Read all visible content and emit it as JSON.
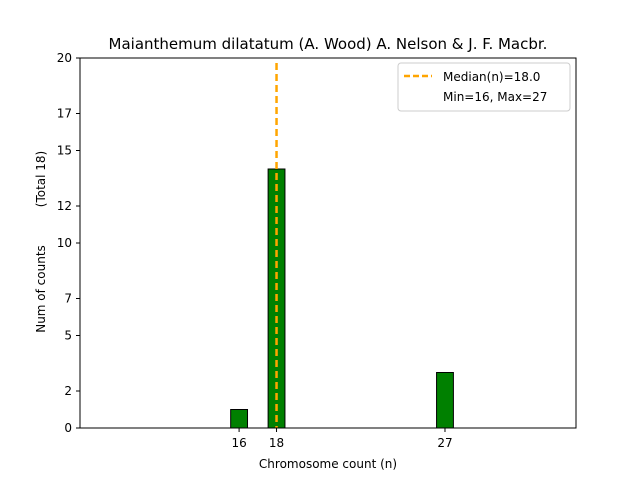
{
  "chart_data": {
    "type": "bar",
    "title": "Maianthemum dilatatum (A. Wood) A. Nelson & J. F. Macbr.",
    "xlabel": "Chromosome count (n)",
    "ylabel": "Num of counts",
    "ylabel_note": "(Total 18)",
    "x": [
      16,
      18,
      27
    ],
    "values": [
      1,
      14,
      3
    ],
    "xlim": [
      7.5,
      34
    ],
    "ylim": [
      0,
      20
    ],
    "xticks": [
      16,
      18,
      27
    ],
    "yticks": [
      0,
      2,
      5,
      7,
      10,
      12,
      15,
      17,
      20
    ],
    "bar_width": 0.9,
    "bar_color": "#008000",
    "bar_edge_color": "#000000",
    "median": 18.0,
    "median_color": "#ffa500",
    "legend": {
      "position": "top-right",
      "entries": [
        "Median(n)=18.0",
        "Min=16, Max=27"
      ]
    },
    "grid": false
  }
}
